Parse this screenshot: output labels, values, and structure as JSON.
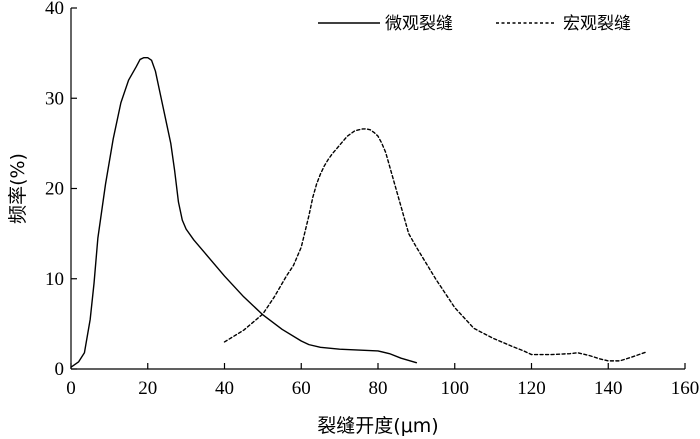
{
  "chart_data": {
    "type": "line",
    "xlabel": "裂缝开度(μm)",
    "ylabel": "频率(%)",
    "xlim": [
      0,
      160
    ],
    "ylim": [
      0,
      40
    ],
    "xticks": [
      0,
      20,
      40,
      60,
      80,
      100,
      120,
      140,
      160
    ],
    "yticks": [
      0,
      10,
      20,
      30,
      40
    ],
    "legend_position": "top-right",
    "grid": false,
    "series": [
      {
        "name": "微观裂缝",
        "style": "solid",
        "color": "#000000",
        "x": [
          0,
          2,
          3.5,
          5,
          6,
          7,
          9,
          11,
          13,
          15,
          17,
          18,
          19,
          20,
          21,
          22,
          23,
          24,
          25,
          26,
          27,
          28,
          29,
          30,
          32,
          35,
          40,
          45,
          50,
          55,
          60,
          62,
          65,
          70,
          75,
          80,
          83,
          86,
          90
        ],
        "y": [
          0.2,
          0.8,
          1.8,
          5.5,
          9.5,
          14.5,
          20.5,
          25.5,
          29.5,
          32.0,
          33.5,
          34.3,
          34.5,
          34.5,
          34.2,
          33.0,
          31.0,
          29.0,
          27.0,
          25.0,
          22.0,
          18.5,
          16.5,
          15.5,
          14.3,
          12.8,
          10.3,
          8.0,
          6.0,
          4.4,
          3.1,
          2.7,
          2.4,
          2.2,
          2.1,
          2.0,
          1.7,
          1.2,
          0.7
        ]
      },
      {
        "name": "宏观裂缝",
        "style": "dashed",
        "color": "#000000",
        "x": [
          40,
          45,
          50,
          53,
          56,
          58,
          60,
          62,
          63,
          64,
          65,
          66,
          67,
          68,
          69,
          70,
          71,
          72,
          73,
          74,
          75,
          76,
          77,
          78,
          79,
          80,
          81,
          82,
          83,
          85,
          88,
          90,
          95,
          100,
          105,
          110,
          115,
          118,
          120,
          125,
          130,
          132,
          135,
          138,
          140,
          143,
          146,
          150
        ],
        "y": [
          3.0,
          4.3,
          6.1,
          8.0,
          10.2,
          11.5,
          13.5,
          17.0,
          19.0,
          20.5,
          21.6,
          22.5,
          23.2,
          23.8,
          24.3,
          24.8,
          25.3,
          25.8,
          26.1,
          26.4,
          26.5,
          26.6,
          26.6,
          26.5,
          26.2,
          25.8,
          25.0,
          24.0,
          22.5,
          19.5,
          15.0,
          13.5,
          10.0,
          6.8,
          4.5,
          3.4,
          2.5,
          2.0,
          1.6,
          1.6,
          1.7,
          1.8,
          1.5,
          1.1,
          0.9,
          0.9,
          1.3,
          1.9
        ]
      }
    ]
  }
}
